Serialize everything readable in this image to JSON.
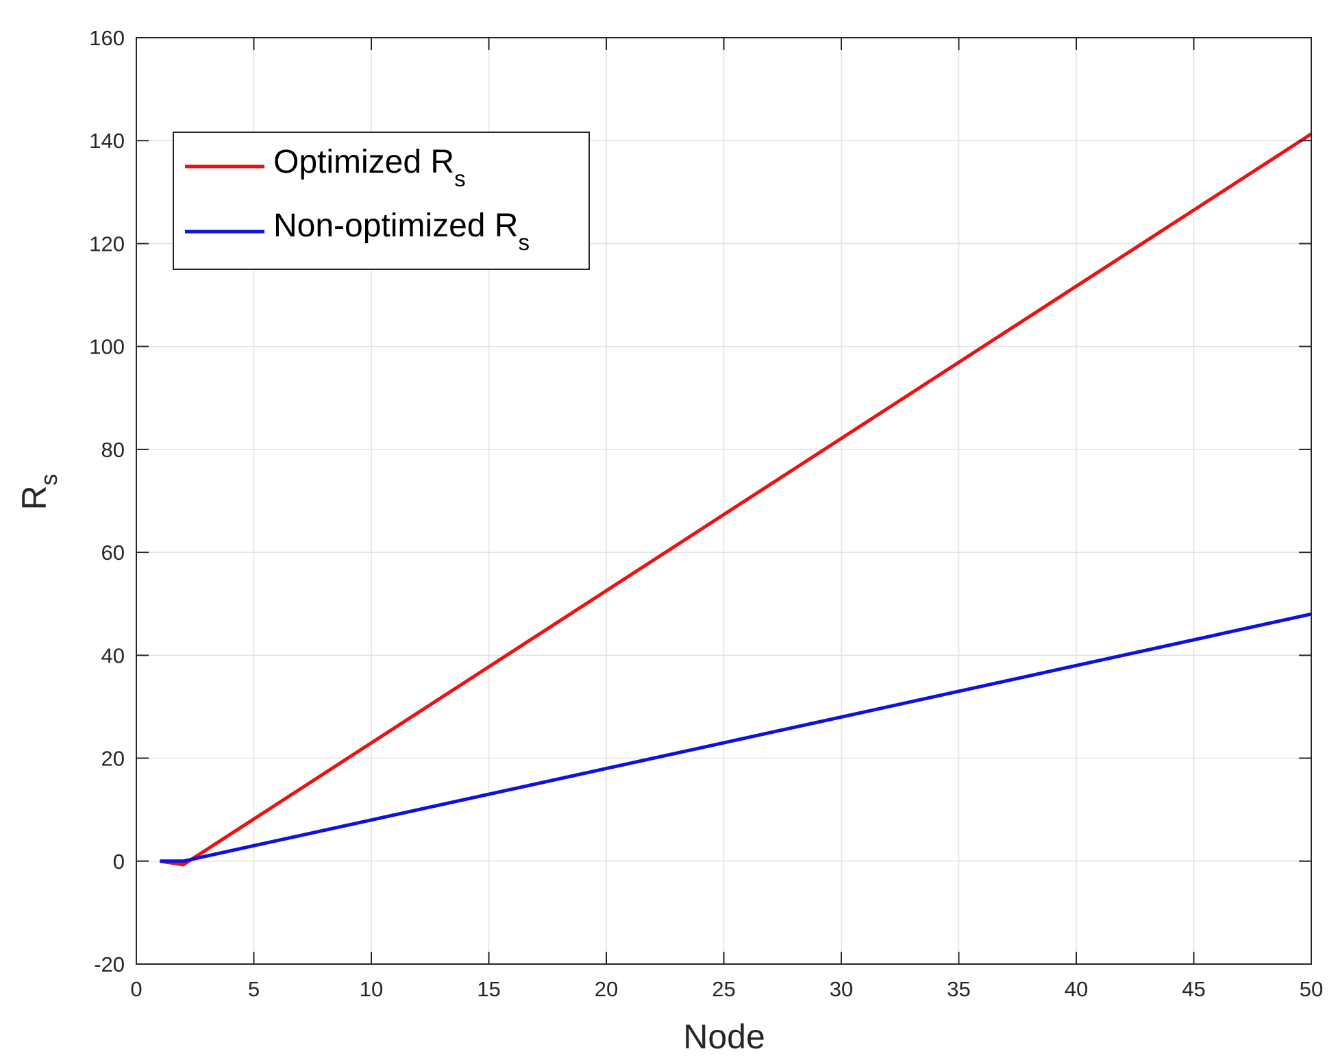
{
  "chart_data": {
    "type": "line",
    "xlabel": "Node",
    "ylabel": {
      "main": "R",
      "sub": "s"
    },
    "xlim": [
      0,
      50
    ],
    "ylim": [
      -20,
      160
    ],
    "xticks": [
      0,
      5,
      10,
      15,
      20,
      25,
      30,
      35,
      40,
      45,
      50
    ],
    "yticks": [
      -20,
      0,
      20,
      40,
      60,
      80,
      100,
      120,
      140,
      160
    ],
    "grid": true,
    "legend_position": "top-left",
    "series": [
      {
        "name": {
          "main": "Optimized R",
          "sub": "s"
        },
        "color": "#ee1111",
        "x": [
          1,
          2,
          50
        ],
        "y": [
          0,
          -0.7,
          141.3
        ]
      },
      {
        "name": {
          "main": "Non-optimized R",
          "sub": "s"
        },
        "color": "#1111dd",
        "x": [
          1,
          2,
          50
        ],
        "y": [
          0,
          0,
          48
        ]
      }
    ]
  }
}
